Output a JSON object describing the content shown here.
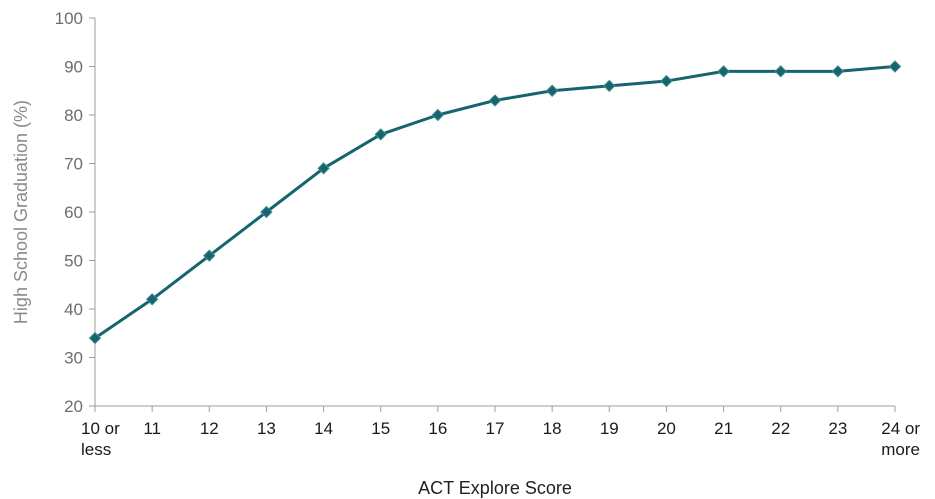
{
  "chart_data": {
    "type": "line",
    "xlabel": "ACT Explore Score",
    "ylabel": "High School Graduation (%)",
    "ylim": [
      20,
      100
    ],
    "yticks": [
      20,
      30,
      40,
      50,
      60,
      70,
      80,
      90,
      100
    ],
    "grid": false,
    "categories": [
      [
        "10 or",
        "less"
      ],
      [
        "11"
      ],
      [
        "12"
      ],
      [
        "13"
      ],
      [
        "14"
      ],
      [
        "15"
      ],
      [
        "16"
      ],
      [
        "17"
      ],
      [
        "18"
      ],
      [
        "19"
      ],
      [
        "20"
      ],
      [
        "21"
      ],
      [
        "22"
      ],
      [
        "23"
      ],
      [
        "24 or",
        "more"
      ]
    ],
    "series": [
      {
        "values": [
          34,
          42,
          51,
          60,
          69,
          76,
          80,
          83,
          85,
          86,
          87,
          89,
          89,
          89,
          90
        ],
        "color": "#16656e",
        "marker": "diamond"
      }
    ]
  }
}
